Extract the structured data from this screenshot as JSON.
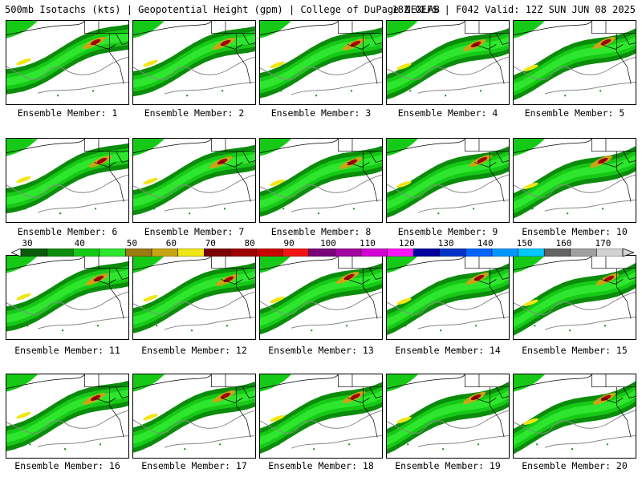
{
  "header": {
    "title": "500mb Isotachs (kts) | Geopotential Height (gpm) | College of DuPage NEXLAB",
    "run": "18Z GEFS | F042 Valid: 12Z SUN JUN 08 2025"
  },
  "colors": {
    "bands": [
      "#0a5a0a",
      "#0b8c0b",
      "#17c917",
      "#2ee62e",
      "#9c7a10",
      "#c8a514",
      "#f0e614",
      "#7a0000",
      "#9e0000",
      "#c80000",
      "#f01414",
      "#780078",
      "#a000a0",
      "#d200d2",
      "#ff14ff",
      "#0000a0",
      "#0032c8",
      "#0064ff",
      "#0096ff",
      "#00c8ff",
      "#646464",
      "#a0a0a0",
      "#d2d2d2"
    ],
    "contour": "#888888",
    "border": "#000000"
  },
  "colorbar": {
    "labels": [
      "30",
      "40",
      "50",
      "60",
      "70",
      "80",
      "90",
      "100",
      "110",
      "120",
      "130",
      "140",
      "150",
      "160",
      "170"
    ]
  },
  "members": [
    {
      "caption": "Ensemble Member: 1"
    },
    {
      "caption": "Ensemble Member: 2"
    },
    {
      "caption": "Ensemble Member: 3"
    },
    {
      "caption": "Ensemble Member: 4"
    },
    {
      "caption": "Ensemble Member: 5"
    },
    {
      "caption": "Ensemble Member: 6"
    },
    {
      "caption": "Ensemble Member: 7"
    },
    {
      "caption": "Ensemble Member: 8"
    },
    {
      "caption": "Ensemble Member: 9"
    },
    {
      "caption": "Ensemble Member: 10"
    },
    {
      "caption": "Ensemble Member: 11"
    },
    {
      "caption": "Ensemble Member: 12"
    },
    {
      "caption": "Ensemble Member: 13"
    },
    {
      "caption": "Ensemble Member: 14"
    },
    {
      "caption": "Ensemble Member: 15"
    },
    {
      "caption": "Ensemble Member: 16"
    },
    {
      "caption": "Ensemble Member: 17"
    },
    {
      "caption": "Ensemble Member: 18"
    },
    {
      "caption": "Ensemble Member: 19"
    },
    {
      "caption": "Ensemble Member: 20"
    }
  ]
}
